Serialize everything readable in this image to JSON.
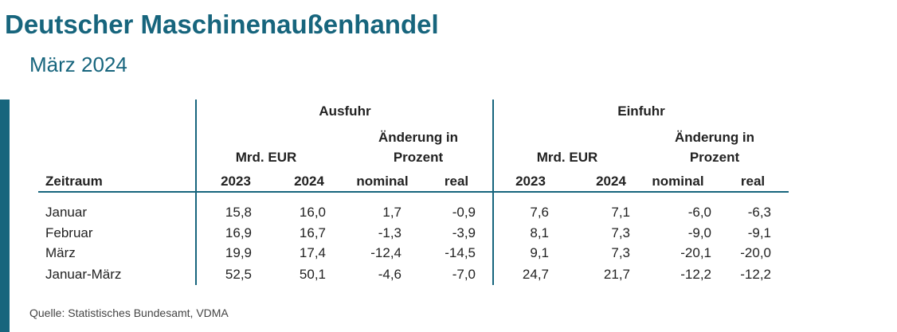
{
  "header": {
    "title": "Deutscher Maschinenaußenhandel",
    "subtitle": "März 2024"
  },
  "table": {
    "groups": [
      "Ausfuhr",
      "Einfuhr"
    ],
    "subgroups": [
      "Mrd. EUR",
      "Änderung in Prozent",
      "Mrd. EUR",
      "Änderung in Prozent"
    ],
    "columns": [
      "Zeitraum",
      "2023",
      "2024",
      "nominal",
      "real",
      "2023",
      "2024",
      "nominal",
      "real"
    ],
    "rows": [
      [
        "Januar",
        "15,8",
        "16,0",
        "1,7",
        "-0,9",
        "7,6",
        "7,1",
        "-6,0",
        "-6,3"
      ],
      [
        "Februar",
        "16,9",
        "16,7",
        "-1,3",
        "-3,9",
        "8,1",
        "7,3",
        "-9,0",
        "-9,1"
      ],
      [
        "März",
        "19,9",
        "17,4",
        "-12,4",
        "-14,5",
        "9,1",
        "7,3",
        "-20,1",
        "-20,0"
      ],
      [
        "Januar-März",
        "52,5",
        "50,1",
        "-4,6",
        "-7,0",
        "24,7",
        "21,7",
        "-12,2",
        "-12,2"
      ]
    ]
  },
  "footer": {
    "source": "Quelle: Statistisches Bundesamt, VDMA"
  }
}
